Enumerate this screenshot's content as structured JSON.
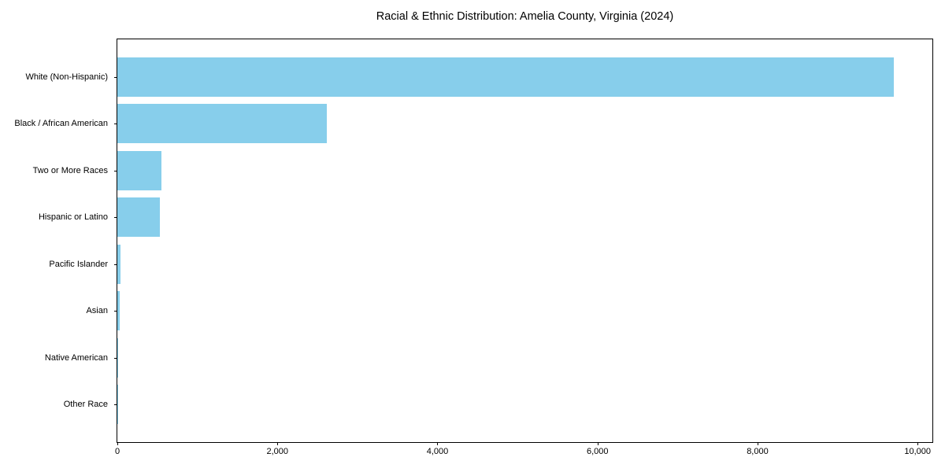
{
  "figure": {
    "background_color": "#ffffff",
    "frame_color": "#000000",
    "text_color": "#000000"
  },
  "chart_data": {
    "type": "bar",
    "orientation": "horizontal",
    "title": "Racial & Ethnic Distribution: Amelia County, Virginia (2024)",
    "xlabel": "",
    "ylabel": "",
    "grid": false,
    "legend": null,
    "bar_color": "#87CEEB",
    "xlim": [
      0,
      10185
    ],
    "categories": [
      "White (Non-Hispanic)",
      "Black / African American",
      "Two or More Races",
      "Hispanic or Latino",
      "Pacific Islander",
      "Asian",
      "Native American",
      "Other Race"
    ],
    "values": [
      9700,
      2620,
      550,
      528,
      35,
      31,
      10,
      4
    ],
    "xticks": [
      {
        "value": 0,
        "label": "0"
      },
      {
        "value": 2000,
        "label": "2,000"
      },
      {
        "value": 4000,
        "label": "4,000"
      },
      {
        "value": 6000,
        "label": "6,000"
      },
      {
        "value": 8000,
        "label": "8,000"
      },
      {
        "value": 10000,
        "label": "10,000"
      }
    ]
  }
}
